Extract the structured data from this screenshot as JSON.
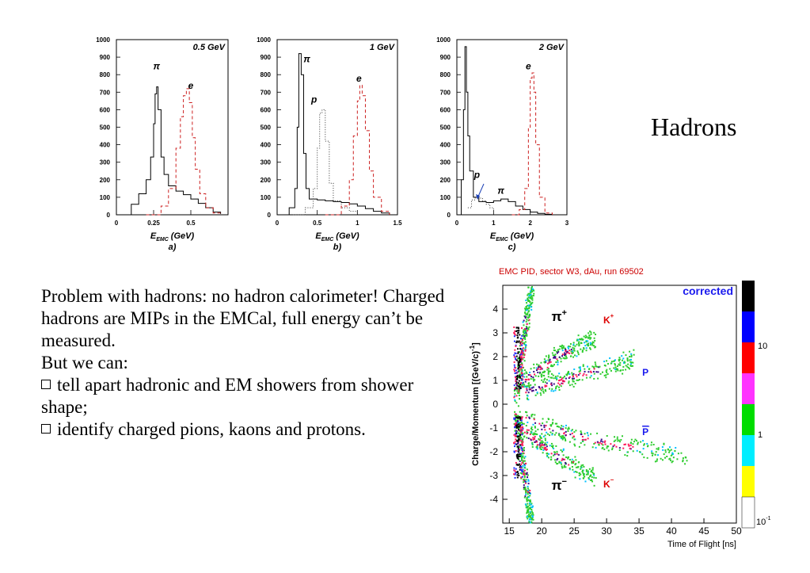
{
  "slide_title": "Hadrons",
  "paragraph": {
    "intro": "Problem with hadrons: no hadron calorimeter! Charged hadrons are MIPs in the EMCal, full energy can’t be measured.",
    "lead": "But we can:",
    "bullets": [
      "tell apart hadronic and EM showers from shower shape;",
      "identify charged pions, kaons and protons."
    ]
  },
  "chart_data": [
    {
      "type": "line",
      "panel": "a)",
      "title": "0.5 GeV",
      "xlabel": "E_EMC (GeV)",
      "ylim": [
        0,
        1000
      ],
      "xlim": [
        0,
        0.75
      ],
      "y_ticks": [
        "0",
        "100",
        "200",
        "300",
        "400",
        "500",
        "600",
        "700",
        "800",
        "900",
        "1000"
      ],
      "x_ticks": [
        "0",
        "0.25",
        "0.5"
      ],
      "series": [
        {
          "name": "π",
          "style": "solid",
          "x": [
            0.02,
            0.1,
            0.15,
            0.2,
            0.23,
            0.25,
            0.26,
            0.27,
            0.28,
            0.3,
            0.32,
            0.35,
            0.4,
            0.45,
            0.5,
            0.55,
            0.6,
            0.65,
            0.7
          ],
          "values": [
            0,
            60,
            120,
            200,
            330,
            520,
            690,
            730,
            600,
            330,
            230,
            165,
            135,
            115,
            90,
            65,
            40,
            15,
            5
          ]
        },
        {
          "name": "e",
          "style": "dashed",
          "x": [
            0.2,
            0.3,
            0.35,
            0.4,
            0.43,
            0.45,
            0.47,
            0.49,
            0.51,
            0.53,
            0.56,
            0.6,
            0.65,
            0.7
          ],
          "values": [
            0,
            50,
            150,
            380,
            560,
            680,
            720,
            640,
            440,
            260,
            120,
            40,
            10,
            0
          ]
        }
      ]
    },
    {
      "type": "line",
      "panel": "b)",
      "title": "1 GeV",
      "xlabel": "E_EMC (GeV)",
      "ylim": [
        0,
        1000
      ],
      "xlim": [
        0,
        1.5
      ],
      "y_ticks": [
        "0",
        "100",
        "200",
        "300",
        "400",
        "500",
        "600",
        "700",
        "800",
        "900",
        "1000"
      ],
      "x_ticks": [
        "0",
        "0.5",
        "1",
        "1.5"
      ],
      "series": [
        {
          "name": "π",
          "style": "solid",
          "x": [
            0.05,
            0.15,
            0.22,
            0.25,
            0.27,
            0.3,
            0.33,
            0.36,
            0.4,
            0.5,
            0.6,
            0.7,
            0.8,
            0.9,
            1.0,
            1.1,
            1.2,
            1.3,
            1.4
          ],
          "values": [
            0,
            40,
            150,
            500,
            920,
            800,
            350,
            150,
            90,
            85,
            80,
            75,
            70,
            62,
            50,
            35,
            20,
            10,
            3
          ]
        },
        {
          "name": "p",
          "style": "dotted",
          "x": [
            0.2,
            0.35,
            0.45,
            0.5,
            0.53,
            0.56,
            0.6,
            0.65,
            0.7,
            0.8,
            0.9,
            1.0
          ],
          "values": [
            0,
            40,
            150,
            380,
            580,
            600,
            420,
            180,
            80,
            40,
            20,
            5
          ]
        },
        {
          "name": "e",
          "style": "dashed",
          "x": [
            0.6,
            0.8,
            0.9,
            0.95,
            1.0,
            1.03,
            1.06,
            1.1,
            1.15,
            1.2,
            1.3,
            1.4
          ],
          "values": [
            0,
            50,
            200,
            450,
            650,
            740,
            680,
            480,
            250,
            100,
            20,
            0
          ]
        }
      ]
    },
    {
      "type": "line",
      "panel": "c)",
      "title": "2 GeV",
      "xlabel": "E_EMC (GeV)",
      "ylim": [
        0,
        1000
      ],
      "xlim": [
        0,
        3
      ],
      "y_ticks": [
        "0",
        "100",
        "200",
        "300",
        "400",
        "500",
        "600",
        "700",
        "800",
        "900",
        "1000"
      ],
      "x_ticks": [
        "0",
        "1",
        "2",
        "3"
      ],
      "series": [
        {
          "name": "π",
          "style": "solid",
          "x": [
            0.05,
            0.12,
            0.18,
            0.22,
            0.26,
            0.3,
            0.35,
            0.45,
            0.6,
            0.8,
            1.0,
            1.2,
            1.4,
            1.6,
            1.8,
            2.0,
            2.2,
            2.4,
            2.6
          ],
          "values": [
            0,
            200,
            600,
            960,
            700,
            450,
            250,
            100,
            75,
            70,
            80,
            90,
            75,
            50,
            30,
            15,
            8,
            3,
            0
          ]
        },
        {
          "name": "p",
          "style": "dotted",
          "x": [
            0.3,
            0.4,
            0.5,
            0.6,
            0.7,
            0.8,
            0.9,
            1.0
          ],
          "values": [
            40,
            85,
            100,
            95,
            80,
            60,
            40,
            20
          ]
        },
        {
          "name": "e",
          "style": "dashed",
          "x": [
            1.5,
            1.7,
            1.85,
            1.95,
            2.0,
            2.05,
            2.1,
            2.15,
            2.25,
            2.4,
            2.6
          ],
          "values": [
            0,
            30,
            150,
            500,
            780,
            810,
            700,
            400,
            100,
            10,
            0
          ]
        }
      ]
    },
    {
      "type": "scatter",
      "title": "EMC PID, sector W3, dAu, run 69502",
      "annotation": "corrected",
      "xlabel": "Time of Flight [ns]",
      "ylabel": "Charge/Momentum [(GeV/c)",
      "ylabel_exponent": "-1",
      "ylabel_close": "]",
      "xlim": [
        14,
        50
      ],
      "ylim": [
        -5,
        5
      ],
      "x_ticks": [
        "15",
        "20",
        "25",
        "30",
        "35",
        "40",
        "45",
        "50"
      ],
      "y_ticks": [
        "4",
        "3",
        "2",
        "1",
        "0",
        "-1",
        "-2",
        "-3",
        "-4"
      ],
      "colorbar_labels": [
        "10",
        "1",
        "10"
      ],
      "colorbar_min_exponent": "-1",
      "colorbar_colors": [
        "#000000",
        "#0000ff",
        "#ff0000",
        "#ff33ff",
        "#00dd00",
        "#00eeff",
        "#ffff00",
        "#ffffff"
      ],
      "band_labels": {
        "pi_plus": "π",
        "pi_plus_sup": "+",
        "k_plus": "K",
        "k_plus_sup": "+",
        "p": "P",
        "pbar": "P",
        "pi_minus": "π",
        "pi_minus_sup": "−",
        "k_minus": "K",
        "k_minus_sup": "−"
      },
      "bands": [
        {
          "name": "π+",
          "x": [
            16.0,
            16.3,
            16.8,
            17.3,
            17.8,
            18.4
          ],
          "values": [
            0.4,
            1.0,
            2.0,
            3.0,
            4.0,
            5.0
          ]
        },
        {
          "name": "K+",
          "x": [
            16.0,
            18.0,
            20.0,
            22.0,
            25.0,
            28.0
          ],
          "values": [
            0.8,
            1.2,
            1.6,
            2.0,
            2.4,
            2.8
          ]
        },
        {
          "name": "p",
          "x": [
            17.0,
            20.0,
            23.0,
            26.0,
            30.0,
            34.0
          ],
          "values": [
            0.5,
            0.8,
            1.0,
            1.3,
            1.6,
            1.9
          ]
        },
        {
          "name": "π−",
          "x": [
            16.0,
            16.3,
            16.8,
            17.3,
            17.8,
            18.4
          ],
          "values": [
            -0.4,
            -1.0,
            -2.0,
            -3.0,
            -4.0,
            -5.0
          ]
        },
        {
          "name": "K−",
          "x": [
            16.0,
            18.0,
            20.0,
            22.0,
            25.0,
            28.0
          ],
          "values": [
            -0.8,
            -1.3,
            -1.7,
            -2.1,
            -2.6,
            -3.0
          ]
        },
        {
          "name": "p̄",
          "x": [
            17.0,
            20.0,
            24.0,
            28.0,
            34.0,
            42.0
          ],
          "values": [
            -0.5,
            -0.9,
            -1.2,
            -1.5,
            -1.8,
            -2.2
          ]
        }
      ]
    }
  ]
}
